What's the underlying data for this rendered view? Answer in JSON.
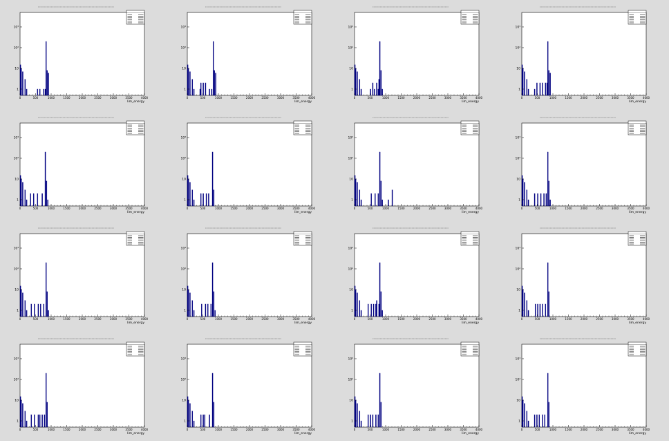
{
  "chart_data": [
    {
      "type": "bar",
      "xlabel": "lim_energy",
      "xlim": [
        0,
        4000
      ],
      "log_y": true,
      "tick_labels": [
        "0",
        "500",
        "1000",
        "1500",
        "2000",
        "2500",
        "3000",
        "3500",
        "4000"
      ],
      "y_tick_labels": [
        "1",
        "10",
        "10²",
        "10³"
      ],
      "bins": [
        [
          0,
          15
        ],
        [
          25,
          10
        ],
        [
          75,
          7
        ],
        [
          150,
          3
        ],
        [
          200,
          1
        ],
        [
          550,
          1
        ],
        [
          625,
          1
        ],
        [
          750,
          1
        ],
        [
          800,
          1
        ],
        [
          825,
          200
        ],
        [
          860,
          8
        ],
        [
          900,
          6
        ]
      ],
      "series_color": "#000080"
    },
    {
      "type": "bar",
      "xlabel": "lim_energy",
      "xlim": [
        0,
        4000
      ],
      "log_y": true,
      "tick_labels": [
        "0",
        "500",
        "1000",
        "1500",
        "2000",
        "2500",
        "3000",
        "3500",
        "4000"
      ],
      "y_tick_labels": [
        "1",
        "10",
        "10²",
        "10³"
      ],
      "bins": [
        [
          0,
          15
        ],
        [
          25,
          10
        ],
        [
          75,
          7
        ],
        [
          150,
          3
        ],
        [
          200,
          1
        ],
        [
          400,
          1
        ],
        [
          425,
          2
        ],
        [
          500,
          2
        ],
        [
          575,
          2
        ],
        [
          700,
          1
        ],
        [
          775,
          1
        ],
        [
          825,
          200
        ],
        [
          860,
          8
        ],
        [
          900,
          6
        ]
      ],
      "series_color": "#000080"
    },
    {
      "type": "bar",
      "xlabel": "lim_energy",
      "xlim": [
        0,
        4000
      ],
      "log_y": true,
      "tick_labels": [
        "0",
        "500",
        "1000",
        "1500",
        "2000",
        "2500",
        "3000",
        "3500",
        "4000"
      ],
      "y_tick_labels": [
        "1",
        "10",
        "10²",
        "10³"
      ],
      "bins": [
        [
          0,
          15
        ],
        [
          25,
          10
        ],
        [
          75,
          7
        ],
        [
          150,
          3
        ],
        [
          200,
          1
        ],
        [
          500,
          1
        ],
        [
          575,
          2
        ],
        [
          625,
          1
        ],
        [
          700,
          2
        ],
        [
          750,
          1
        ],
        [
          775,
          3
        ],
        [
          800,
          200
        ],
        [
          840,
          8
        ],
        [
          880,
          1
        ]
      ],
      "series_color": "#000080"
    },
    {
      "type": "bar",
      "xlabel": "lim_energy",
      "xlim": [
        0,
        4000
      ],
      "log_y": true,
      "tick_labels": [
        "0",
        "500",
        "1000",
        "1500",
        "2000",
        "2500",
        "3000",
        "3500",
        "4000"
      ],
      "y_tick_labels": [
        "1",
        "10",
        "10²",
        "10³"
      ],
      "bins": [
        [
          0,
          15
        ],
        [
          25,
          10
        ],
        [
          75,
          7
        ],
        [
          150,
          3
        ],
        [
          200,
          1
        ],
        [
          400,
          1
        ],
        [
          475,
          2
        ],
        [
          575,
          2
        ],
        [
          650,
          2
        ],
        [
          750,
          2
        ],
        [
          800,
          2
        ],
        [
          825,
          200
        ],
        [
          860,
          8
        ],
        [
          900,
          6
        ]
      ],
      "series_color": "#000080"
    },
    {
      "type": "bar",
      "xlabel": "lim_energy",
      "xlim": [
        0,
        4000
      ],
      "log_y": true,
      "tick_labels": [
        "0",
        "500",
        "1000",
        "1500",
        "2000",
        "2500",
        "3000",
        "3500",
        "4000"
      ],
      "y_tick_labels": [
        "1",
        "10",
        "10²",
        "10³"
      ],
      "bins": [
        [
          0,
          15
        ],
        [
          25,
          10
        ],
        [
          75,
          7
        ],
        [
          150,
          3
        ],
        [
          200,
          1
        ],
        [
          325,
          2
        ],
        [
          425,
          2
        ],
        [
          550,
          2
        ],
        [
          700,
          2
        ],
        [
          800,
          200
        ],
        [
          840,
          8
        ],
        [
          880,
          1
        ]
      ],
      "series_color": "#000080"
    },
    {
      "type": "bar",
      "xlabel": "lim_energy",
      "xlim": [
        0,
        4000
      ],
      "log_y": true,
      "tick_labels": [
        "0",
        "500",
        "1000",
        "1500",
        "2000",
        "2500",
        "3000",
        "3500",
        "4000"
      ],
      "y_tick_labels": [
        "1",
        "10",
        "10²",
        "10³"
      ],
      "bins": [
        [
          0,
          15
        ],
        [
          25,
          10
        ],
        [
          75,
          7
        ],
        [
          150,
          3
        ],
        [
          200,
          1
        ],
        [
          425,
          2
        ],
        [
          500,
          2
        ],
        [
          600,
          2
        ],
        [
          675,
          2
        ],
        [
          800,
          200
        ],
        [
          840,
          3
        ]
      ],
      "series_color": "#000080"
    },
    {
      "type": "bar",
      "xlabel": "lim_energy",
      "xlim": [
        0,
        4000
      ],
      "log_y": true,
      "tick_labels": [
        "0",
        "500",
        "1000",
        "1500",
        "2000",
        "2500",
        "3000",
        "3500",
        "4000"
      ],
      "y_tick_labels": [
        "1",
        "10",
        "10²",
        "10³"
      ],
      "bins": [
        [
          0,
          15
        ],
        [
          25,
          10
        ],
        [
          75,
          7
        ],
        [
          150,
          3
        ],
        [
          200,
          1
        ],
        [
          525,
          2
        ],
        [
          650,
          2
        ],
        [
          750,
          2
        ],
        [
          800,
          200
        ],
        [
          840,
          8
        ],
        [
          880,
          1
        ],
        [
          1075,
          1
        ],
        [
          1200,
          3
        ]
      ],
      "series_color": "#000080"
    },
    {
      "type": "bar",
      "xlabel": "lim_energy",
      "xlim": [
        0,
        4000
      ],
      "log_y": true,
      "tick_labels": [
        "0",
        "500",
        "1000",
        "1500",
        "2000",
        "2500",
        "3000",
        "3500",
        "4000"
      ],
      "y_tick_labels": [
        "1",
        "10",
        "10²",
        "10³"
      ],
      "bins": [
        [
          0,
          15
        ],
        [
          25,
          10
        ],
        [
          75,
          7
        ],
        [
          150,
          3
        ],
        [
          200,
          1
        ],
        [
          400,
          2
        ],
        [
          500,
          2
        ],
        [
          600,
          2
        ],
        [
          700,
          2
        ],
        [
          775,
          2
        ],
        [
          825,
          200
        ],
        [
          860,
          8
        ],
        [
          900,
          1
        ]
      ],
      "series_color": "#000080"
    },
    {
      "type": "bar",
      "xlabel": "lim_energy",
      "xlim": [
        0,
        4000
      ],
      "log_y": true,
      "tick_labels": [
        "0",
        "500",
        "1000",
        "1500",
        "2000",
        "2500",
        "3000",
        "3500",
        "4000"
      ],
      "y_tick_labels": [
        "1",
        "10",
        "10²",
        "10³"
      ],
      "bins": [
        [
          0,
          15
        ],
        [
          25,
          10
        ],
        [
          75,
          7
        ],
        [
          150,
          3
        ],
        [
          200,
          1
        ],
        [
          350,
          2
        ],
        [
          450,
          2
        ],
        [
          575,
          2
        ],
        [
          650,
          2
        ],
        [
          750,
          2
        ],
        [
          825,
          200
        ],
        [
          860,
          8
        ],
        [
          900,
          1
        ]
      ],
      "series_color": "#000080"
    },
    {
      "type": "bar",
      "xlabel": "lim_energy",
      "xlim": [
        0,
        4000
      ],
      "log_y": true,
      "tick_labels": [
        "0",
        "500",
        "1000",
        "1500",
        "2000",
        "2500",
        "3000",
        "3500",
        "4000"
      ],
      "y_tick_labels": [
        "1",
        "10",
        "10²",
        "10³"
      ],
      "bins": [
        [
          0,
          15
        ],
        [
          25,
          10
        ],
        [
          75,
          7
        ],
        [
          150,
          3
        ],
        [
          200,
          1
        ],
        [
          450,
          2
        ],
        [
          575,
          2
        ],
        [
          650,
          2
        ],
        [
          750,
          2
        ],
        [
          800,
          200
        ],
        [
          840,
          8
        ],
        [
          880,
          1
        ]
      ],
      "series_color": "#000080"
    },
    {
      "type": "bar",
      "xlabel": "lim_energy",
      "xlim": [
        0,
        4000
      ],
      "log_y": true,
      "tick_labels": [
        "0",
        "500",
        "1000",
        "1500",
        "2000",
        "2500",
        "3000",
        "3500",
        "4000"
      ],
      "y_tick_labels": [
        "1",
        "10",
        "10²",
        "10³"
      ],
      "bins": [
        [
          0,
          15
        ],
        [
          25,
          10
        ],
        [
          75,
          7
        ],
        [
          150,
          3
        ],
        [
          200,
          1
        ],
        [
          425,
          2
        ],
        [
          525,
          2
        ],
        [
          600,
          2
        ],
        [
          675,
          2
        ],
        [
          700,
          3
        ],
        [
          775,
          2
        ],
        [
          800,
          200
        ],
        [
          840,
          8
        ],
        [
          880,
          1
        ]
      ],
      "series_color": "#000080"
    },
    {
      "type": "bar",
      "xlabel": "lim_energy",
      "xlim": [
        0,
        4000
      ],
      "log_y": true,
      "tick_labels": [
        "0",
        "500",
        "1000",
        "1500",
        "2000",
        "2500",
        "3000",
        "3500",
        "4000"
      ],
      "y_tick_labels": [
        "1",
        "10",
        "10²",
        "10³"
      ],
      "bins": [
        [
          0,
          15
        ],
        [
          25,
          10
        ],
        [
          75,
          7
        ],
        [
          150,
          3
        ],
        [
          200,
          1
        ],
        [
          425,
          2
        ],
        [
          500,
          2
        ],
        [
          575,
          2
        ],
        [
          650,
          2
        ],
        [
          750,
          2
        ],
        [
          825,
          200
        ],
        [
          860,
          8
        ]
      ],
      "series_color": "#000080"
    },
    {
      "type": "bar",
      "xlabel": "lim_energy",
      "xlim": [
        0,
        4000
      ],
      "log_y": true,
      "tick_labels": [
        "0",
        "500",
        "1000",
        "1500",
        "2000",
        "2500",
        "3000",
        "3500",
        "4000"
      ],
      "y_tick_labels": [
        "1",
        "10",
        "10²",
        "10³"
      ],
      "bins": [
        [
          0,
          15
        ],
        [
          25,
          10
        ],
        [
          75,
          7
        ],
        [
          150,
          3
        ],
        [
          200,
          1
        ],
        [
          350,
          2
        ],
        [
          450,
          2
        ],
        [
          575,
          2
        ],
        [
          625,
          2
        ],
        [
          700,
          2
        ],
        [
          775,
          2
        ],
        [
          825,
          200
        ],
        [
          860,
          8
        ]
      ],
      "series_color": "#000080"
    },
    {
      "type": "bar",
      "xlabel": "lim_energy",
      "xlim": [
        0,
        4000
      ],
      "log_y": true,
      "tick_labels": [
        "0",
        "500",
        "1000",
        "1500",
        "2000",
        "2500",
        "3000",
        "3500",
        "4000"
      ],
      "y_tick_labels": [
        "1",
        "10",
        "10²",
        "10³"
      ],
      "bins": [
        [
          0,
          15
        ],
        [
          25,
          10
        ],
        [
          75,
          7
        ],
        [
          150,
          3
        ],
        [
          200,
          1
        ],
        [
          425,
          2
        ],
        [
          500,
          2
        ],
        [
          550,
          2
        ],
        [
          700,
          2
        ],
        [
          800,
          200
        ],
        [
          840,
          8
        ]
      ],
      "series_color": "#000080"
    },
    {
      "type": "bar",
      "xlabel": "lim_energy",
      "xlim": [
        0,
        4000
      ],
      "log_y": true,
      "tick_labels": [
        "0",
        "500",
        "1000",
        "1500",
        "2000",
        "2500",
        "3000",
        "3500",
        "4000"
      ],
      "y_tick_labels": [
        "1",
        "10",
        "10²",
        "10³"
      ],
      "bins": [
        [
          0,
          15
        ],
        [
          25,
          10
        ],
        [
          75,
          7
        ],
        [
          150,
          3
        ],
        [
          200,
          1
        ],
        [
          425,
          2
        ],
        [
          500,
          2
        ],
        [
          575,
          2
        ],
        [
          675,
          2
        ],
        [
          750,
          2
        ],
        [
          800,
          200
        ],
        [
          840,
          8
        ]
      ],
      "series_color": "#000080"
    },
    {
      "type": "bar",
      "xlabel": "lim_energy",
      "xlim": [
        0,
        4000
      ],
      "log_y": true,
      "tick_labels": [
        "0",
        "500",
        "1000",
        "1500",
        "2000",
        "2500",
        "3000",
        "3500",
        "4000"
      ],
      "y_tick_labels": [
        "1",
        "10",
        "10²",
        "10³"
      ],
      "bins": [
        [
          0,
          15
        ],
        [
          25,
          10
        ],
        [
          75,
          7
        ],
        [
          150,
          3
        ],
        [
          200,
          1
        ],
        [
          400,
          2
        ],
        [
          475,
          2
        ],
        [
          550,
          2
        ],
        [
          650,
          2
        ],
        [
          725,
          2
        ],
        [
          825,
          200
        ],
        [
          860,
          8
        ]
      ],
      "series_color": "#000080"
    }
  ]
}
